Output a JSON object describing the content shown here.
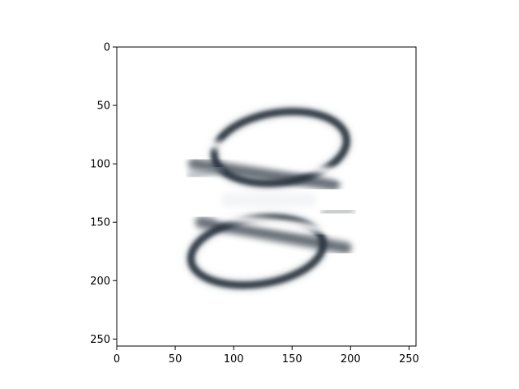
{
  "chart_data": {
    "type": "heatmap",
    "title": "",
    "xlabel": "",
    "ylabel": "",
    "image_size": [
      256,
      256
    ],
    "xlim": [
      0,
      256
    ],
    "ylim": [
      256,
      0
    ],
    "x_ticks": [
      0,
      50,
      100,
      150,
      200,
      250
    ],
    "y_ticks": [
      0,
      50,
      100,
      150,
      200,
      250
    ],
    "x_tick_labels": [
      "0",
      "50",
      "100",
      "150",
      "200",
      "250"
    ],
    "y_tick_labels": [
      "0",
      "50",
      "100",
      "150",
      "200",
      "250"
    ],
    "colormap": "bone_r",
    "colors": {
      "dark": "#2b3640",
      "mid": "#7f8c96",
      "background": "#ffffff"
    },
    "content": "two blurred dark ring shapes with diagonal bright bands, upper ring centered near (130, 90), lower ring centered near (130, 175)"
  }
}
